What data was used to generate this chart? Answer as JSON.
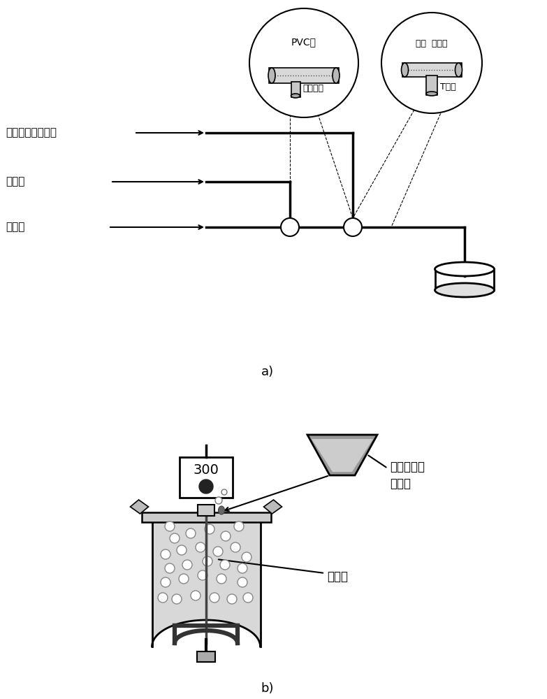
{
  "bg_color": "#ffffff",
  "text_color": "#000000",
  "label_a": "a)",
  "label_b": "b)",
  "labels_top": [
    "连续相（加单体）",
    "分散相",
    "连续相"
  ],
  "circle1_label1": "不锈钢管",
  "circle1_label2": "PVC管",
  "circle2_label1": "T型管",
  "circle2_label2": "液滴  微胶囊",
  "reactor_label1": "连续相（加\n单体）",
  "reactor_label2": "乳液滴",
  "display_number": "300"
}
